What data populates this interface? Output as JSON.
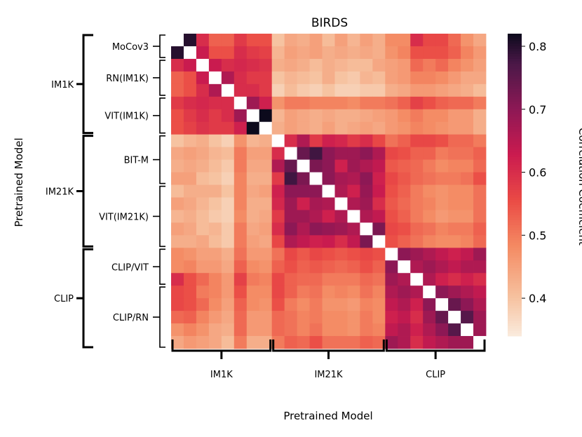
{
  "chart_data": {
    "type": "heatmap",
    "title": "BIRDS",
    "xlabel": "Pretrained Model",
    "ylabel": "Pretrained Model",
    "colorbar": {
      "label": "Correlation Coefficient",
      "min": 0.34,
      "max": 0.82,
      "ticks": [
        0.4,
        0.5,
        0.6,
        0.7,
        0.8
      ]
    },
    "model_groups": [
      {
        "name": "MoCov3",
        "count": 2
      },
      {
        "name": "RN(IM1K)",
        "count": 3
      },
      {
        "name": "VIT(IM1K)",
        "count": 3
      },
      {
        "name": "BIT-M",
        "count": 4
      },
      {
        "name": "VIT(IM21K)",
        "count": 5
      },
      {
        "name": "CLIP/VIT",
        "count": 3
      },
      {
        "name": "CLIP/RN",
        "count": 5
      }
    ],
    "super_groups": [
      {
        "name": "IM1K",
        "count": 8
      },
      {
        "name": "IM21K",
        "count": 9
      },
      {
        "name": "CLIP",
        "count": 8
      }
    ],
    "matrix": [
      [
        1.0,
        0.8,
        0.6,
        0.53,
        0.53,
        0.58,
        0.55,
        0.55,
        0.4,
        0.44,
        0.43,
        0.45,
        0.41,
        0.45,
        0.42,
        0.45,
        0.43,
        0.48,
        0.48,
        0.6,
        0.56,
        0.56,
        0.52,
        0.47,
        0.44
      ],
      [
        0.8,
        1.0,
        0.63,
        0.55,
        0.55,
        0.6,
        0.58,
        0.57,
        0.42,
        0.45,
        0.44,
        0.45,
        0.43,
        0.44,
        0.43,
        0.44,
        0.43,
        0.47,
        0.49,
        0.55,
        0.55,
        0.55,
        0.53,
        0.49,
        0.46
      ],
      [
        0.6,
        0.63,
        1.0,
        0.63,
        0.6,
        0.61,
        0.6,
        0.59,
        0.43,
        0.44,
        0.43,
        0.41,
        0.43,
        0.42,
        0.41,
        0.41,
        0.44,
        0.45,
        0.46,
        0.52,
        0.5,
        0.52,
        0.49,
        0.47,
        0.45
      ],
      [
        0.53,
        0.55,
        0.63,
        1.0,
        0.66,
        0.6,
        0.58,
        0.58,
        0.4,
        0.42,
        0.41,
        0.4,
        0.43,
        0.4,
        0.39,
        0.42,
        0.41,
        0.45,
        0.46,
        0.49,
        0.49,
        0.48,
        0.46,
        0.44,
        0.44
      ],
      [
        0.53,
        0.55,
        0.6,
        0.66,
        1.0,
        0.6,
        0.6,
        0.58,
        0.38,
        0.41,
        0.39,
        0.38,
        0.4,
        0.38,
        0.38,
        0.39,
        0.39,
        0.43,
        0.44,
        0.46,
        0.46,
        0.45,
        0.44,
        0.43,
        0.41
      ],
      [
        0.58,
        0.6,
        0.61,
        0.6,
        0.6,
        1.0,
        0.68,
        0.62,
        0.47,
        0.5,
        0.5,
        0.49,
        0.49,
        0.49,
        0.48,
        0.5,
        0.5,
        0.51,
        0.53,
        0.57,
        0.55,
        0.53,
        0.52,
        0.52,
        0.5
      ],
      [
        0.55,
        0.58,
        0.6,
        0.58,
        0.6,
        0.68,
        1.0,
        0.82,
        0.42,
        0.45,
        0.44,
        0.43,
        0.44,
        0.43,
        0.43,
        0.44,
        0.45,
        0.46,
        0.48,
        0.5,
        0.48,
        0.48,
        0.46,
        0.46,
        0.43
      ],
      [
        0.55,
        0.57,
        0.59,
        0.58,
        0.58,
        0.62,
        0.82,
        1.0,
        0.43,
        0.45,
        0.44,
        0.43,
        0.45,
        0.43,
        0.44,
        0.45,
        0.44,
        0.46,
        0.47,
        0.49,
        0.48,
        0.47,
        0.46,
        0.46,
        0.43
      ],
      [
        0.4,
        0.42,
        0.43,
        0.4,
        0.38,
        0.47,
        0.42,
        0.43,
        1.0,
        0.6,
        0.66,
        0.58,
        0.62,
        0.61,
        0.58,
        0.6,
        0.56,
        0.51,
        0.53,
        0.56,
        0.56,
        0.55,
        0.52,
        0.52,
        0.5
      ],
      [
        0.44,
        0.45,
        0.44,
        0.42,
        0.41,
        0.5,
        0.45,
        0.45,
        0.6,
        1.0,
        0.74,
        0.78,
        0.7,
        0.68,
        0.68,
        0.7,
        0.66,
        0.56,
        0.55,
        0.53,
        0.53,
        0.5,
        0.51,
        0.51,
        0.53
      ],
      [
        0.43,
        0.44,
        0.43,
        0.41,
        0.39,
        0.5,
        0.44,
        0.44,
        0.66,
        0.74,
        1.0,
        0.72,
        0.7,
        0.62,
        0.68,
        0.66,
        0.64,
        0.54,
        0.53,
        0.52,
        0.5,
        0.48,
        0.49,
        0.49,
        0.52
      ],
      [
        0.45,
        0.45,
        0.41,
        0.4,
        0.38,
        0.49,
        0.43,
        0.43,
        0.58,
        0.78,
        0.72,
        1.0,
        0.7,
        0.67,
        0.66,
        0.7,
        0.62,
        0.56,
        0.54,
        0.52,
        0.51,
        0.5,
        0.5,
        0.51,
        0.55
      ],
      [
        0.41,
        0.43,
        0.43,
        0.43,
        0.4,
        0.49,
        0.44,
        0.45,
        0.62,
        0.7,
        0.7,
        0.7,
        1.0,
        0.66,
        0.62,
        0.69,
        0.63,
        0.55,
        0.53,
        0.5,
        0.48,
        0.47,
        0.48,
        0.48,
        0.51
      ],
      [
        0.45,
        0.44,
        0.42,
        0.4,
        0.38,
        0.49,
        0.43,
        0.43,
        0.61,
        0.68,
        0.62,
        0.67,
        0.66,
        1.0,
        0.66,
        0.68,
        0.6,
        0.54,
        0.52,
        0.5,
        0.49,
        0.47,
        0.48,
        0.48,
        0.51
      ],
      [
        0.42,
        0.43,
        0.41,
        0.39,
        0.38,
        0.48,
        0.43,
        0.44,
        0.58,
        0.68,
        0.68,
        0.66,
        0.62,
        0.66,
        1.0,
        0.66,
        0.64,
        0.55,
        0.53,
        0.5,
        0.48,
        0.46,
        0.47,
        0.47,
        0.51
      ],
      [
        0.45,
        0.44,
        0.41,
        0.42,
        0.39,
        0.5,
        0.44,
        0.45,
        0.6,
        0.7,
        0.66,
        0.7,
        0.69,
        0.68,
        0.66,
        1.0,
        0.72,
        0.56,
        0.55,
        0.52,
        0.51,
        0.49,
        0.5,
        0.5,
        0.53
      ],
      [
        0.43,
        0.43,
        0.44,
        0.41,
        0.39,
        0.5,
        0.45,
        0.44,
        0.56,
        0.66,
        0.64,
        0.62,
        0.63,
        0.6,
        0.64,
        0.72,
        1.0,
        0.55,
        0.53,
        0.51,
        0.49,
        0.48,
        0.48,
        0.49,
        0.52
      ],
      [
        0.48,
        0.47,
        0.45,
        0.45,
        0.43,
        0.51,
        0.46,
        0.46,
        0.51,
        0.56,
        0.54,
        0.56,
        0.55,
        0.54,
        0.55,
        0.56,
        0.55,
        1.0,
        0.7,
        0.68,
        0.66,
        0.64,
        0.62,
        0.64,
        0.68
      ],
      [
        0.48,
        0.49,
        0.46,
        0.46,
        0.44,
        0.53,
        0.48,
        0.47,
        0.53,
        0.55,
        0.53,
        0.54,
        0.53,
        0.52,
        0.53,
        0.55,
        0.53,
        0.7,
        1.0,
        0.66,
        0.68,
        0.66,
        0.64,
        0.66,
        0.66
      ],
      [
        0.6,
        0.55,
        0.52,
        0.49,
        0.46,
        0.57,
        0.5,
        0.49,
        0.56,
        0.53,
        0.52,
        0.52,
        0.5,
        0.5,
        0.5,
        0.52,
        0.51,
        0.68,
        0.66,
        1.0,
        0.66,
        0.62,
        0.6,
        0.62,
        0.6
      ],
      [
        0.56,
        0.55,
        0.5,
        0.49,
        0.46,
        0.55,
        0.48,
        0.48,
        0.56,
        0.53,
        0.5,
        0.51,
        0.48,
        0.49,
        0.48,
        0.51,
        0.49,
        0.66,
        0.68,
        0.66,
        1.0,
        0.7,
        0.68,
        0.66,
        0.64
      ],
      [
        0.56,
        0.55,
        0.52,
        0.48,
        0.45,
        0.53,
        0.48,
        0.47,
        0.55,
        0.5,
        0.48,
        0.5,
        0.47,
        0.47,
        0.46,
        0.49,
        0.48,
        0.64,
        0.66,
        0.62,
        0.7,
        1.0,
        0.74,
        0.7,
        0.66
      ],
      [
        0.52,
        0.53,
        0.49,
        0.46,
        0.44,
        0.52,
        0.46,
        0.46,
        0.52,
        0.51,
        0.49,
        0.5,
        0.48,
        0.48,
        0.47,
        0.5,
        0.48,
        0.62,
        0.64,
        0.6,
        0.68,
        0.74,
        1.0,
        0.76,
        0.68
      ],
      [
        0.47,
        0.49,
        0.47,
        0.44,
        0.43,
        0.52,
        0.46,
        0.46,
        0.52,
        0.51,
        0.49,
        0.51,
        0.48,
        0.48,
        0.47,
        0.5,
        0.49,
        0.64,
        0.66,
        0.62,
        0.66,
        0.7,
        0.76,
        1.0,
        0.68
      ],
      [
        0.44,
        0.46,
        0.45,
        0.44,
        0.41,
        0.5,
        0.43,
        0.43,
        0.5,
        0.53,
        0.52,
        0.55,
        0.51,
        0.51,
        0.51,
        0.53,
        0.52,
        0.68,
        0.66,
        0.6,
        0.64,
        0.66,
        0.68,
        0.68,
        1.0
      ]
    ]
  }
}
